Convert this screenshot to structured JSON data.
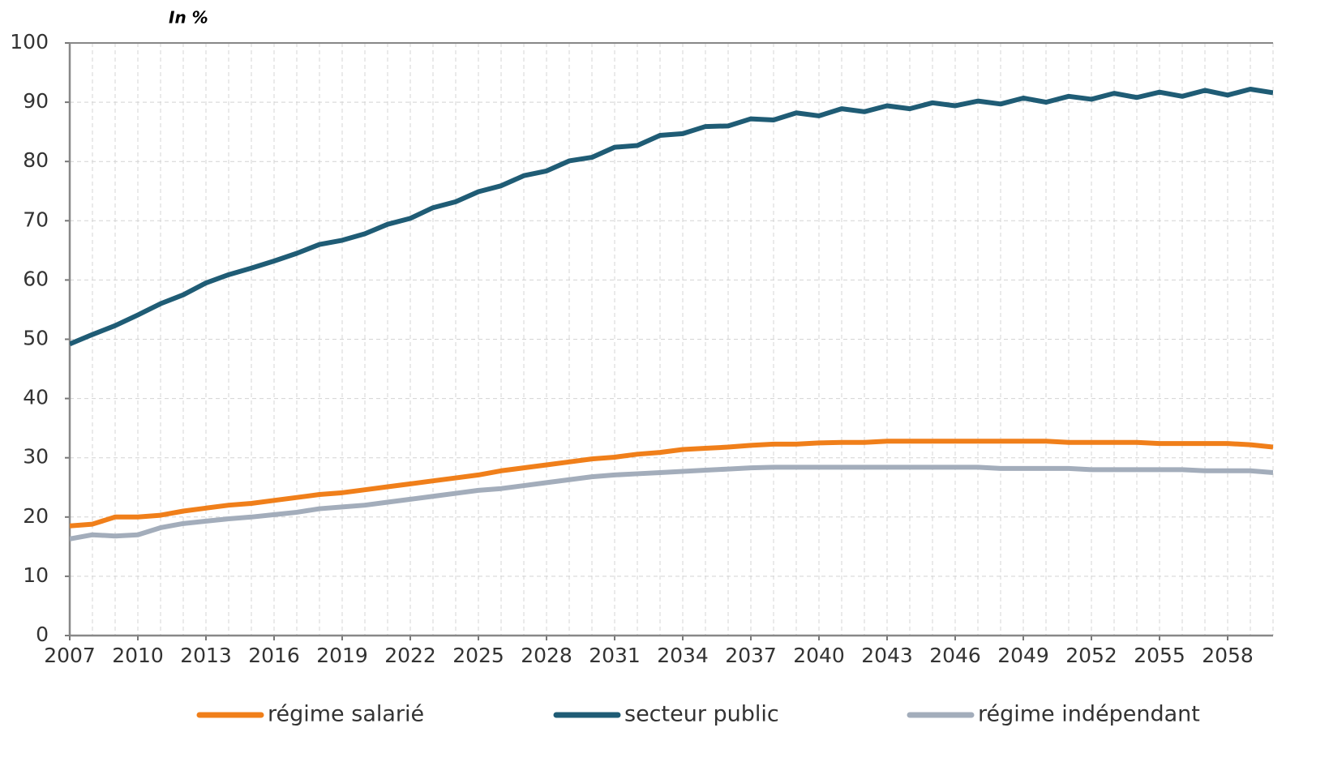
{
  "chart_data": {
    "type": "line",
    "y_unit_label": "In %",
    "x": [
      2007,
      2008,
      2009,
      2010,
      2011,
      2012,
      2013,
      2014,
      2015,
      2016,
      2017,
      2018,
      2019,
      2020,
      2021,
      2022,
      2023,
      2024,
      2025,
      2026,
      2027,
      2028,
      2029,
      2030,
      2031,
      2032,
      2033,
      2034,
      2035,
      2036,
      2037,
      2038,
      2039,
      2040,
      2041,
      2042,
      2043,
      2044,
      2045,
      2046,
      2047,
      2048,
      2049,
      2050,
      2051,
      2052,
      2053,
      2054,
      2055,
      2056,
      2057,
      2058,
      2059,
      2060
    ],
    "xlim": [
      2007,
      2060
    ],
    "xticks": [
      2007,
      2010,
      2013,
      2016,
      2019,
      2022,
      2025,
      2028,
      2031,
      2034,
      2037,
      2040,
      2043,
      2046,
      2049,
      2052,
      2055,
      2058
    ],
    "ylim": [
      0,
      100
    ],
    "yticks": [
      0,
      10,
      20,
      30,
      40,
      50,
      60,
      70,
      80,
      90,
      100
    ],
    "grid": true,
    "legend": "bottom",
    "series": [
      {
        "name": "régime salarié",
        "color": "#f07f1a",
        "values": [
          18.5,
          18.8,
          20.0,
          20.0,
          20.3,
          21.0,
          21.5,
          22.0,
          22.3,
          22.8,
          23.3,
          23.8,
          24.1,
          24.6,
          25.1,
          25.6,
          26.1,
          26.6,
          27.1,
          27.8,
          28.3,
          28.8,
          29.3,
          29.8,
          30.1,
          30.6,
          30.9,
          31.4,
          31.6,
          31.8,
          32.1,
          32.3,
          32.3,
          32.5,
          32.6,
          32.6,
          32.8,
          32.8,
          32.8,
          32.8,
          32.8,
          32.8,
          32.8,
          32.8,
          32.6,
          32.6,
          32.6,
          32.6,
          32.4,
          32.4,
          32.4,
          32.4,
          32.2,
          31.8
        ]
      },
      {
        "name": "secteur public",
        "color": "#1f5c75",
        "values": [
          49.2,
          50.8,
          52.3,
          54.1,
          56.0,
          57.5,
          59.5,
          60.9,
          62.0,
          63.2,
          64.5,
          66.0,
          66.7,
          67.8,
          69.4,
          70.4,
          72.2,
          73.2,
          74.9,
          75.9,
          77.6,
          78.4,
          80.1,
          80.7,
          82.4,
          82.7,
          84.4,
          84.7,
          85.9,
          86.0,
          87.2,
          87.0,
          88.2,
          87.7,
          88.9,
          88.4,
          89.4,
          88.9,
          89.9,
          89.4,
          90.2,
          89.7,
          90.7,
          90.0,
          91.0,
          90.5,
          91.5,
          90.8,
          91.7,
          91.0,
          92.0,
          91.2,
          92.2,
          91.6
        ]
      },
      {
        "name": "régime indépendant",
        "color": "#a3adbb",
        "values": [
          16.3,
          17.0,
          16.8,
          17.0,
          18.2,
          18.9,
          19.3,
          19.7,
          20.0,
          20.4,
          20.8,
          21.4,
          21.7,
          22.0,
          22.5,
          23.0,
          23.5,
          24.0,
          24.5,
          24.8,
          25.3,
          25.8,
          26.3,
          26.8,
          27.1,
          27.3,
          27.5,
          27.7,
          27.9,
          28.1,
          28.3,
          28.4,
          28.4,
          28.4,
          28.4,
          28.4,
          28.4,
          28.4,
          28.4,
          28.4,
          28.4,
          28.2,
          28.2,
          28.2,
          28.2,
          28.0,
          28.0,
          28.0,
          28.0,
          28.0,
          27.8,
          27.8,
          27.8,
          27.5
        ]
      }
    ]
  }
}
